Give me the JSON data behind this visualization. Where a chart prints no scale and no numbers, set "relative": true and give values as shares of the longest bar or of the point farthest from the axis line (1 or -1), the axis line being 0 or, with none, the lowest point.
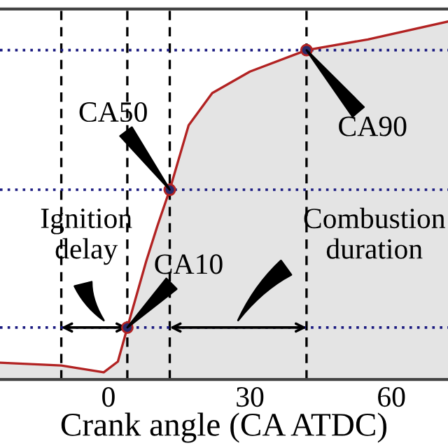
{
  "chart_data": {
    "type": "area",
    "relative": true,
    "xlabel": "Crank angle (CA ATDC)",
    "xlim": [
      -23,
      72
    ],
    "xticks": [
      0,
      30,
      60
    ],
    "tick_labels": "x",
    "grid": false,
    "series": [
      {
        "color": "#b22222",
        "x": [
          -23,
          -10,
          -1,
          2,
          4,
          8,
          10.4,
          13,
          17,
          22,
          30,
          42,
          55,
          72
        ],
        "values": [
          0.047,
          0.039,
          0.02,
          0.05,
          0.145,
          0.33,
          0.43,
          0.53,
          0.71,
          0.8,
          0.86,
          0.92,
          0.95,
          1.0
        ]
      },
      {
        "type": "scatter",
        "color": "#2a2a6a",
        "marker": "circle",
        "x": [
          4,
          13,
          42
        ],
        "values": [
          0.145,
          0.53,
          0.92
        ]
      }
    ],
    "ref_lines": [
      {
        "axis": "x",
        "value": -10,
        "color": "#000000",
        "line_style": "dashed"
      },
      {
        "axis": "x",
        "value": 4,
        "color": "#000000",
        "line_style": "dashed"
      },
      {
        "axis": "x",
        "value": 13,
        "color": "#000000",
        "line_style": "dashed"
      },
      {
        "axis": "x",
        "value": 42,
        "color": "#000000",
        "line_style": "dashed"
      },
      {
        "axis": "y",
        "value": 0.145,
        "color": "#1a1a80",
        "line_style": "dotted"
      },
      {
        "axis": "y",
        "value": 0.53,
        "color": "#1a1a80",
        "line_style": "dotted"
      },
      {
        "axis": "y",
        "value": 0.92,
        "color": "#1a1a80",
        "line_style": "dotted"
      }
    ],
    "annotations": [
      {
        "text": "CA50",
        "x": 13,
        "y": 0.53
      },
      {
        "text": "CA90",
        "x": 42,
        "y": 0.92
      },
      {
        "text": "CA10",
        "x": 4,
        "y": 0.145
      },
      "Ignition delay",
      "Combustion duration"
    ]
  }
}
